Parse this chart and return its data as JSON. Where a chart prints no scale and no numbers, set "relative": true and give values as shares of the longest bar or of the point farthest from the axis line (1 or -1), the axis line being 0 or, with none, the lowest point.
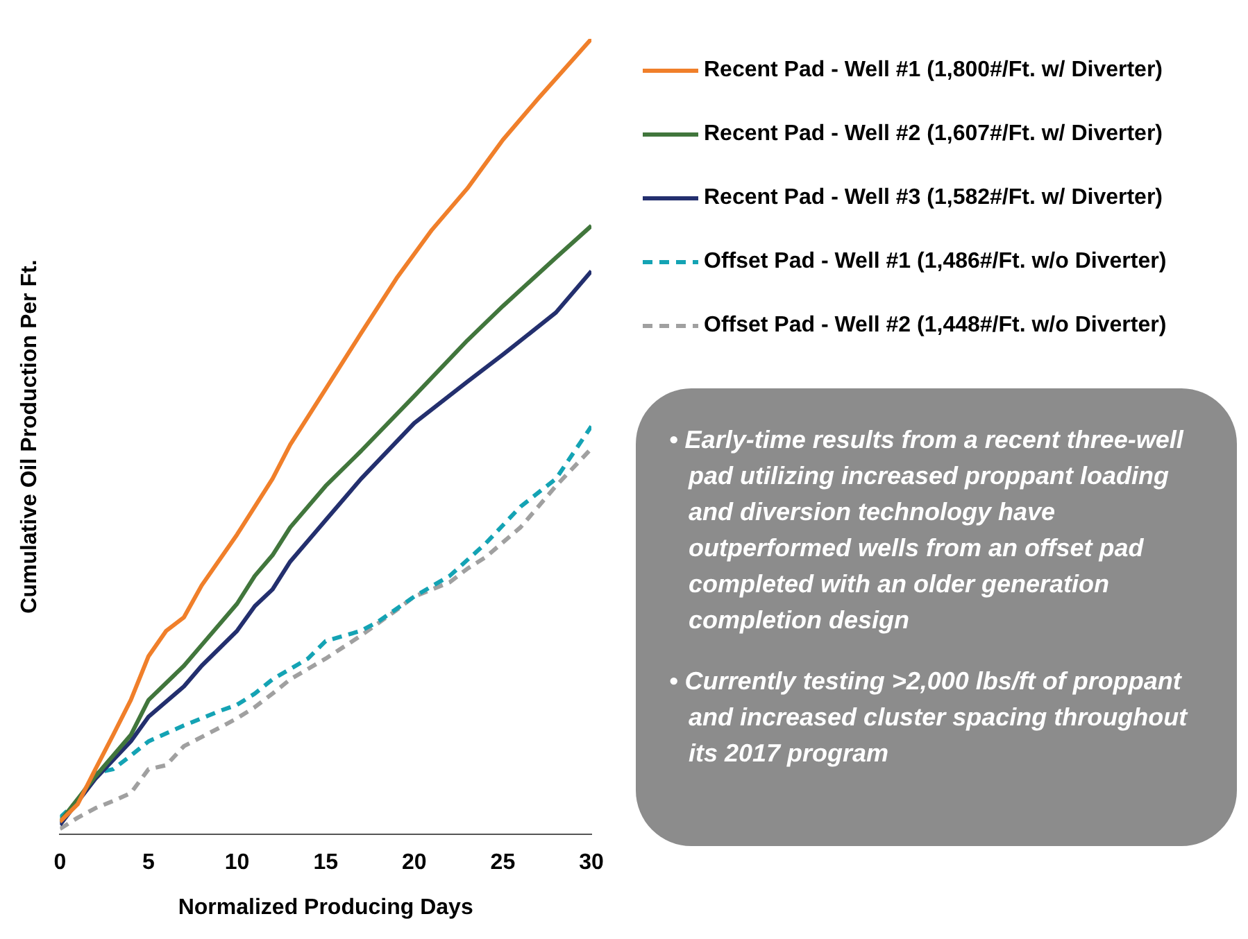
{
  "chart_data": {
    "type": "line",
    "relative": true,
    "xlabel": "Normalized Producing Days",
    "ylabel": "Cumulative Oil Production Per Ft.",
    "xlim": [
      0,
      30
    ],
    "xticks": [
      0,
      5,
      10,
      15,
      20,
      25,
      30
    ],
    "grid": false,
    "legend": "right",
    "marker": "none",
    "series": [
      {
        "name": "Recent Pad - Well #1 (1,800#/Ft. w/ Diverter)",
        "color": "#f07f2a",
        "line_style": "solid",
        "x": [
          0,
          1,
          2,
          3,
          4,
          5,
          6,
          7,
          8,
          10,
          12,
          13,
          15,
          17,
          19,
          21,
          23,
          25,
          27,
          30
        ],
        "values": [
          0.016,
          0.038,
          0.082,
          0.125,
          0.169,
          0.224,
          0.256,
          0.273,
          0.313,
          0.377,
          0.447,
          0.49,
          0.56,
          0.63,
          0.699,
          0.76,
          0.812,
          0.873,
          0.925,
          1
        ]
      },
      {
        "name": "Recent Pad - Well #2 (1,607#/Ft. w/ Diverter)",
        "color": "#41763c",
        "line_style": "solid",
        "x": [
          0,
          2,
          4,
          5,
          7,
          8,
          10,
          11,
          12,
          13,
          15,
          17,
          20,
          23,
          25,
          28,
          30
        ],
        "values": [
          0.016,
          0.073,
          0.125,
          0.169,
          0.212,
          0.238,
          0.29,
          0.325,
          0.351,
          0.386,
          0.438,
          0.482,
          0.551,
          0.621,
          0.664,
          0.725,
          0.765
        ]
      },
      {
        "name": "Recent Pad - Well #3 (1,582#/Ft. w/ Diverter)",
        "color": "#232f6e",
        "line_style": "solid",
        "x": [
          0,
          2,
          4,
          5,
          7,
          8,
          10,
          11,
          12,
          13,
          15,
          17,
          20,
          23,
          25,
          28,
          30
        ],
        "values": [
          0.012,
          0.07,
          0.117,
          0.148,
          0.186,
          0.212,
          0.256,
          0.287,
          0.308,
          0.343,
          0.395,
          0.447,
          0.517,
          0.569,
          0.603,
          0.656,
          0.708
        ]
      },
      {
        "name": "Offset Pad - Well #1 (1,486#/Ft. w/o Diverter)",
        "color": "#14a3b4",
        "line_style": "dashed",
        "x": [
          0,
          1,
          2,
          3,
          4,
          5,
          7,
          9,
          10,
          11,
          12,
          14,
          15,
          17,
          18,
          20,
          22,
          24,
          26,
          28,
          30
        ],
        "values": [
          0.021,
          0.042,
          0.077,
          0.082,
          0.099,
          0.117,
          0.137,
          0.155,
          0.163,
          0.177,
          0.195,
          0.221,
          0.243,
          0.256,
          0.268,
          0.299,
          0.325,
          0.365,
          0.412,
          0.447,
          0.513
        ]
      },
      {
        "name": "Offset Pad - Well #2 (1,448#/Ft. w/o Diverter)",
        "color": "#a0a0a0",
        "line_style": "dashed",
        "x": [
          0,
          1,
          2,
          3,
          4,
          5,
          6,
          7,
          9,
          10,
          11,
          12,
          13,
          15,
          17,
          19,
          20,
          22,
          23,
          24,
          26,
          28,
          30
        ],
        "values": [
          0.007,
          0.021,
          0.033,
          0.042,
          0.052,
          0.082,
          0.087,
          0.111,
          0.134,
          0.146,
          0.16,
          0.177,
          0.195,
          0.221,
          0.25,
          0.282,
          0.299,
          0.317,
          0.334,
          0.348,
          0.386,
          0.438,
          0.485
        ]
      }
    ],
    "annotations": [
      "• Early-time results from a recent three-well pad utilizing increased proppant loading and diversion technology have outperformed wells from an offset pad completed with an older generation completion design",
      "• Currently testing >2,000 lbs/ft of proppant and increased cluster spacing throughout its 2017 program"
    ]
  }
}
